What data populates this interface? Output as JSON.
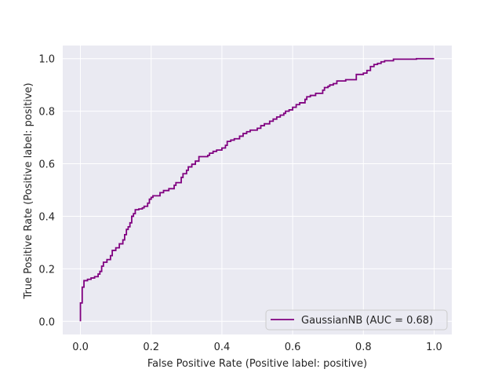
{
  "chart_data": {
    "type": "line",
    "title": "",
    "xlabel": "False Positive Rate (Positive label: positive)",
    "ylabel": "True Positive Rate (Positive label: positive)",
    "xlim": [
      -0.05,
      1.05
    ],
    "ylim": [
      -0.05,
      1.05
    ],
    "x_ticks": [
      0.0,
      0.2,
      0.4,
      0.6,
      0.8,
      1.0
    ],
    "x_tick_labels": [
      "0.0",
      "0.2",
      "0.4",
      "0.6",
      "0.8",
      "1.0"
    ],
    "y_ticks": [
      0.0,
      0.2,
      0.4,
      0.6,
      0.8,
      1.0
    ],
    "y_tick_labels": [
      "0.0",
      "0.2",
      "0.4",
      "0.6",
      "0.8",
      "1.0"
    ],
    "grid": true,
    "background_color": "#eaeaf2",
    "grid_color": "#ffffff",
    "legend_position": "lower-right",
    "legend": [
      {
        "label": "GaussianNB (AUC = 0.68)",
        "color": "#800080"
      }
    ],
    "series": [
      {
        "name": "GaussianNB (AUC = 0.68)",
        "color": "#800080",
        "line_style": "steps-post",
        "points": [
          [
            0.0,
            0.0
          ],
          [
            0.0,
            0.07
          ],
          [
            0.005,
            0.07
          ],
          [
            0.005,
            0.13
          ],
          [
            0.01,
            0.13
          ],
          [
            0.01,
            0.155
          ],
          [
            0.02,
            0.155
          ],
          [
            0.02,
            0.16
          ],
          [
            0.03,
            0.16
          ],
          [
            0.03,
            0.165
          ],
          [
            0.04,
            0.165
          ],
          [
            0.04,
            0.17
          ],
          [
            0.05,
            0.17
          ],
          [
            0.05,
            0.18
          ],
          [
            0.055,
            0.18
          ],
          [
            0.055,
            0.19
          ],
          [
            0.06,
            0.19
          ],
          [
            0.06,
            0.21
          ],
          [
            0.065,
            0.21
          ],
          [
            0.065,
            0.225
          ],
          [
            0.075,
            0.225
          ],
          [
            0.075,
            0.235
          ],
          [
            0.085,
            0.235
          ],
          [
            0.085,
            0.25
          ],
          [
            0.09,
            0.25
          ],
          [
            0.09,
            0.27
          ],
          [
            0.1,
            0.27
          ],
          [
            0.1,
            0.28
          ],
          [
            0.11,
            0.28
          ],
          [
            0.11,
            0.295
          ],
          [
            0.12,
            0.295
          ],
          [
            0.12,
            0.31
          ],
          [
            0.125,
            0.31
          ],
          [
            0.125,
            0.33
          ],
          [
            0.13,
            0.33
          ],
          [
            0.13,
            0.35
          ],
          [
            0.135,
            0.35
          ],
          [
            0.135,
            0.36
          ],
          [
            0.14,
            0.36
          ],
          [
            0.14,
            0.375
          ],
          [
            0.145,
            0.375
          ],
          [
            0.145,
            0.4
          ],
          [
            0.15,
            0.4
          ],
          [
            0.15,
            0.41
          ],
          [
            0.155,
            0.41
          ],
          [
            0.155,
            0.425
          ],
          [
            0.165,
            0.425
          ],
          [
            0.165,
            0.428
          ],
          [
            0.175,
            0.428
          ],
          [
            0.175,
            0.432
          ],
          [
            0.18,
            0.432
          ],
          [
            0.18,
            0.438
          ],
          [
            0.19,
            0.438
          ],
          [
            0.19,
            0.45
          ],
          [
            0.195,
            0.45
          ],
          [
            0.195,
            0.465
          ],
          [
            0.2,
            0.465
          ],
          [
            0.2,
            0.472
          ],
          [
            0.205,
            0.472
          ],
          [
            0.205,
            0.478
          ],
          [
            0.225,
            0.478
          ],
          [
            0.225,
            0.49
          ],
          [
            0.235,
            0.49
          ],
          [
            0.235,
            0.498
          ],
          [
            0.25,
            0.498
          ],
          [
            0.25,
            0.505
          ],
          [
            0.265,
            0.505
          ],
          [
            0.265,
            0.518
          ],
          [
            0.27,
            0.518
          ],
          [
            0.27,
            0.528
          ],
          [
            0.285,
            0.528
          ],
          [
            0.285,
            0.548
          ],
          [
            0.29,
            0.548
          ],
          [
            0.29,
            0.562
          ],
          [
            0.3,
            0.562
          ],
          [
            0.3,
            0.575
          ],
          [
            0.305,
            0.575
          ],
          [
            0.305,
            0.588
          ],
          [
            0.315,
            0.588
          ],
          [
            0.315,
            0.598
          ],
          [
            0.325,
            0.598
          ],
          [
            0.325,
            0.61
          ],
          [
            0.335,
            0.61
          ],
          [
            0.335,
            0.627
          ],
          [
            0.36,
            0.627
          ],
          [
            0.36,
            0.632
          ],
          [
            0.365,
            0.632
          ],
          [
            0.365,
            0.64
          ],
          [
            0.375,
            0.64
          ],
          [
            0.375,
            0.647
          ],
          [
            0.385,
            0.647
          ],
          [
            0.385,
            0.652
          ],
          [
            0.4,
            0.652
          ],
          [
            0.4,
            0.66
          ],
          [
            0.41,
            0.66
          ],
          [
            0.41,
            0.67
          ],
          [
            0.415,
            0.67
          ],
          [
            0.415,
            0.685
          ],
          [
            0.425,
            0.685
          ],
          [
            0.425,
            0.69
          ],
          [
            0.435,
            0.69
          ],
          [
            0.435,
            0.695
          ],
          [
            0.45,
            0.695
          ],
          [
            0.45,
            0.705
          ],
          [
            0.46,
            0.705
          ],
          [
            0.46,
            0.715
          ],
          [
            0.47,
            0.715
          ],
          [
            0.47,
            0.722
          ],
          [
            0.48,
            0.722
          ],
          [
            0.48,
            0.728
          ],
          [
            0.5,
            0.728
          ],
          [
            0.5,
            0.735
          ],
          [
            0.51,
            0.735
          ],
          [
            0.51,
            0.745
          ],
          [
            0.52,
            0.745
          ],
          [
            0.52,
            0.752
          ],
          [
            0.535,
            0.752
          ],
          [
            0.535,
            0.762
          ],
          [
            0.545,
            0.762
          ],
          [
            0.545,
            0.77
          ],
          [
            0.555,
            0.77
          ],
          [
            0.555,
            0.778
          ],
          [
            0.565,
            0.778
          ],
          [
            0.565,
            0.785
          ],
          [
            0.575,
            0.785
          ],
          [
            0.575,
            0.792
          ],
          [
            0.58,
            0.792
          ],
          [
            0.58,
            0.8
          ],
          [
            0.59,
            0.8
          ],
          [
            0.59,
            0.805
          ],
          [
            0.6,
            0.805
          ],
          [
            0.6,
            0.815
          ],
          [
            0.61,
            0.815
          ],
          [
            0.61,
            0.825
          ],
          [
            0.62,
            0.825
          ],
          [
            0.62,
            0.832
          ],
          [
            0.635,
            0.832
          ],
          [
            0.635,
            0.845
          ],
          [
            0.64,
            0.845
          ],
          [
            0.64,
            0.855
          ],
          [
            0.65,
            0.855
          ],
          [
            0.65,
            0.86
          ],
          [
            0.665,
            0.86
          ],
          [
            0.665,
            0.868
          ],
          [
            0.685,
            0.868
          ],
          [
            0.685,
            0.88
          ],
          [
            0.69,
            0.88
          ],
          [
            0.69,
            0.89
          ],
          [
            0.7,
            0.89
          ],
          [
            0.7,
            0.895
          ],
          [
            0.705,
            0.895
          ],
          [
            0.705,
            0.9
          ],
          [
            0.715,
            0.9
          ],
          [
            0.715,
            0.905
          ],
          [
            0.725,
            0.905
          ],
          [
            0.725,
            0.915
          ],
          [
            0.75,
            0.915
          ],
          [
            0.75,
            0.92
          ],
          [
            0.78,
            0.92
          ],
          [
            0.78,
            0.94
          ],
          [
            0.8,
            0.94
          ],
          [
            0.8,
            0.945
          ],
          [
            0.81,
            0.945
          ],
          [
            0.81,
            0.955
          ],
          [
            0.82,
            0.955
          ],
          [
            0.82,
            0.97
          ],
          [
            0.83,
            0.97
          ],
          [
            0.83,
            0.978
          ],
          [
            0.84,
            0.978
          ],
          [
            0.84,
            0.982
          ],
          [
            0.85,
            0.982
          ],
          [
            0.85,
            0.988
          ],
          [
            0.86,
            0.988
          ],
          [
            0.86,
            0.992
          ],
          [
            0.885,
            0.992
          ],
          [
            0.885,
            0.998
          ],
          [
            0.95,
            0.998
          ],
          [
            0.95,
            1.0
          ],
          [
            1.0,
            1.0
          ]
        ]
      }
    ]
  }
}
